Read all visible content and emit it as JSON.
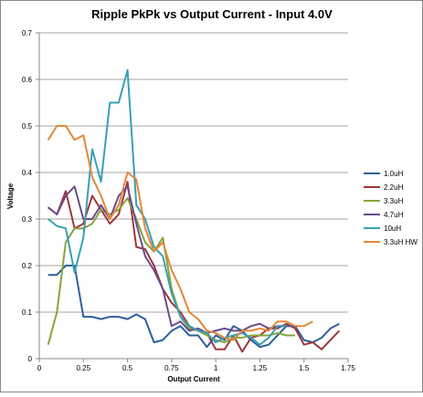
{
  "chart_data": {
    "type": "line",
    "title": "Ripple PkPk vs Output Current - Input 4.0V",
    "x_label": "Output Current",
    "y_label": "Voltage",
    "x": [
      0.05,
      0.1,
      0.15,
      0.2,
      0.25,
      0.3,
      0.35,
      0.4,
      0.45,
      0.5,
      0.55,
      0.6,
      0.65,
      0.7,
      0.75,
      0.8,
      0.85,
      0.9,
      0.95,
      1.0,
      1.05,
      1.1,
      1.15,
      1.2,
      1.25,
      1.3,
      1.35,
      1.4,
      1.45,
      1.5,
      1.55,
      1.6,
      1.65,
      1.7
    ],
    "series": [
      {
        "name": "1.0uH",
        "color": "#2e5f9e",
        "values": [
          0.18,
          0.18,
          0.2,
          0.2,
          0.09,
          0.09,
          0.085,
          0.09,
          0.09,
          0.085,
          0.095,
          0.085,
          0.035,
          0.04,
          0.06,
          0.07,
          0.05,
          0.05,
          0.025,
          0.05,
          0.04,
          0.07,
          0.06,
          0.04,
          0.025,
          0.03,
          0.05,
          0.07,
          0.07,
          0.04,
          0.035,
          0.045,
          0.065,
          0.075
        ]
      },
      {
        "name": "2.2uH",
        "color": "#a0363a",
        "values": [
          0.325,
          0.31,
          0.36,
          0.28,
          0.29,
          0.35,
          0.32,
          0.29,
          0.31,
          0.38,
          0.24,
          0.235,
          0.2,
          0.15,
          0.12,
          0.1,
          0.07,
          0.06,
          0.055,
          0.02,
          0.02,
          0.05,
          0.015,
          0.045,
          0.05,
          0.065,
          0.065,
          0.075,
          0.065,
          0.03,
          0.035,
          0.02,
          0.04,
          0.06
        ]
      },
      {
        "name": "3.3uH",
        "color": "#86a53c",
        "values": [
          0.03,
          0.1,
          0.25,
          0.28,
          0.28,
          0.29,
          0.32,
          0.31,
          0.32,
          0.345,
          0.3,
          0.25,
          0.23,
          0.26,
          0.15,
          0.09,
          0.065,
          0.06,
          0.05,
          0.04,
          0.035,
          0.045,
          0.045,
          0.05,
          0.05,
          0.05,
          0.055,
          0.05,
          0.05,
          null,
          null,
          null,
          null,
          null
        ]
      },
      {
        "name": "4.7uH",
        "color": "#6a4c8c",
        "values": [
          0.325,
          0.31,
          0.35,
          0.37,
          0.3,
          0.3,
          0.33,
          0.3,
          0.35,
          0.37,
          0.29,
          0.22,
          0.19,
          0.15,
          0.07,
          0.08,
          0.06,
          0.065,
          0.055,
          0.06,
          0.065,
          0.06,
          0.06,
          0.07,
          0.075,
          0.065,
          0.07,
          0.07,
          0.07,
          null,
          null,
          null,
          null,
          null
        ]
      },
      {
        "name": "10uH",
        "color": "#3a9fb5",
        "values": [
          0.3,
          0.285,
          0.28,
          0.185,
          0.26,
          0.45,
          0.38,
          0.55,
          0.55,
          0.62,
          0.33,
          0.3,
          0.24,
          0.22,
          0.14,
          0.09,
          0.07,
          0.06,
          0.055,
          0.035,
          0.045,
          0.05,
          0.055,
          0.045,
          0.03,
          0.045,
          0.07,
          0.07,
          null,
          null,
          null,
          null,
          null,
          null
        ]
      },
      {
        "name": "3.3uH HW",
        "color": "#e2883a",
        "values": [
          0.47,
          0.5,
          0.5,
          0.47,
          0.48,
          0.39,
          0.35,
          0.3,
          0.33,
          0.4,
          0.385,
          0.28,
          0.23,
          0.25,
          0.19,
          0.15,
          0.1,
          0.085,
          0.06,
          0.055,
          0.045,
          0.04,
          0.06,
          0.06,
          0.065,
          0.06,
          0.08,
          0.08,
          0.07,
          0.07,
          0.08,
          null,
          null,
          null
        ]
      }
    ],
    "xlim": [
      0,
      1.75
    ],
    "xticks": [
      0,
      0.25,
      0.5,
      0.75,
      1,
      1.25,
      1.5,
      1.75
    ],
    "ylim": [
      0,
      0.7
    ],
    "yticks": [
      0,
      0.1,
      0.2,
      0.3,
      0.4,
      0.5,
      0.6,
      0.7
    ],
    "grid": true,
    "legend": "right"
  }
}
